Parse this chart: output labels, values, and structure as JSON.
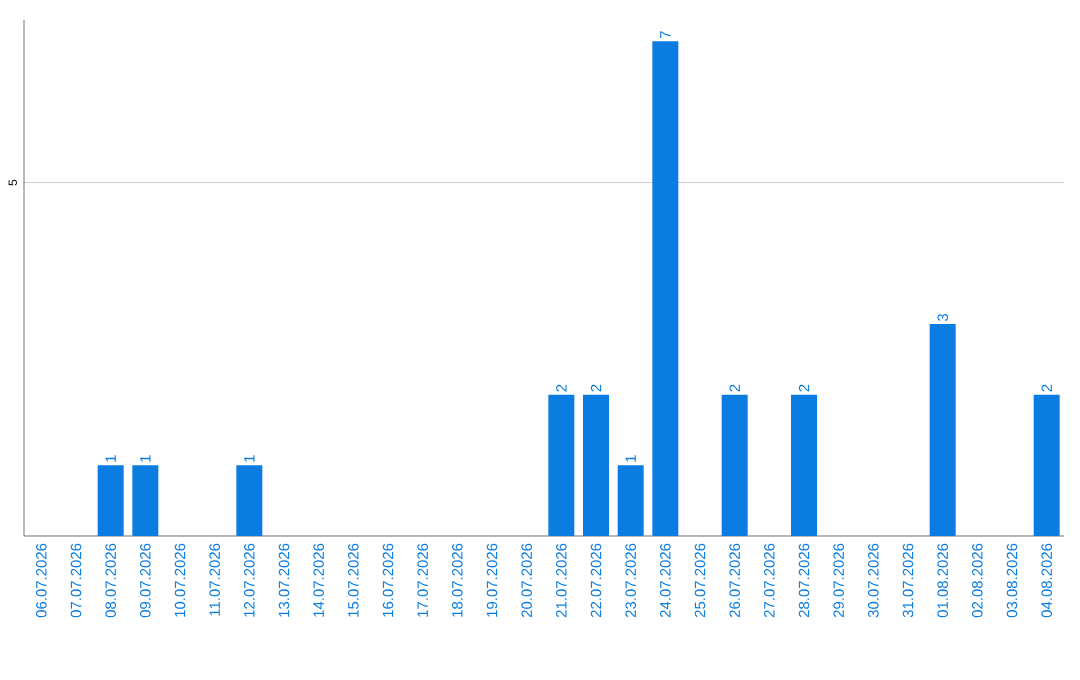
{
  "chart_data": {
    "type": "bar",
    "categories": [
      "06.07.2026",
      "07.07.2026",
      "08.07.2026",
      "09.07.2026",
      "10.07.2026",
      "11.07.2026",
      "12.07.2026",
      "13.07.2026",
      "14.07.2026",
      "15.07.2026",
      "16.07.2026",
      "17.07.2026",
      "18.07.2026",
      "19.07.2026",
      "20.07.2026",
      "21.07.2026",
      "22.07.2026",
      "23.07.2026",
      "24.07.2026",
      "25.07.2026",
      "26.07.2026",
      "27.07.2026",
      "28.07.2026",
      "29.07.2026",
      "30.07.2026",
      "31.07.2026",
      "01.08.2026",
      "02.08.2026",
      "03.08.2026",
      "04.08.2026"
    ],
    "values": [
      0,
      0,
      1,
      1,
      0,
      0,
      1,
      0,
      0,
      0,
      0,
      0,
      0,
      0,
      0,
      2,
      2,
      1,
      7,
      0,
      2,
      0,
      2,
      0,
      0,
      0,
      3,
      0,
      0,
      2
    ],
    "value_labels": [
      null,
      null,
      "1",
      "1",
      null,
      null,
      "1",
      null,
      null,
      null,
      null,
      null,
      null,
      null,
      null,
      "2",
      "2",
      "1",
      "7",
      null,
      "2",
      null,
      "2",
      null,
      null,
      null,
      "3",
      null,
      null,
      "2"
    ],
    "color": "#0b7de2",
    "ylim": [
      0,
      7.3
    ],
    "yticks": [
      5
    ],
    "grid": "y"
  }
}
